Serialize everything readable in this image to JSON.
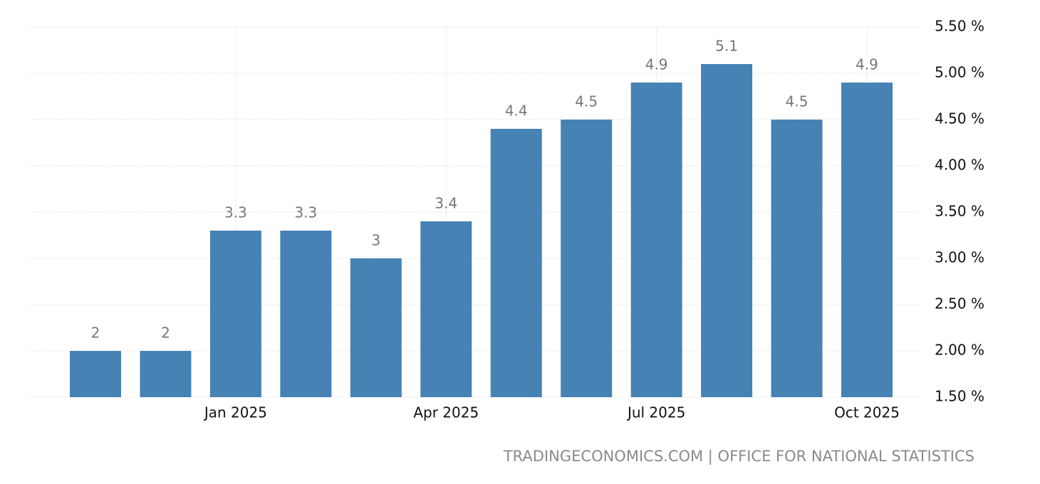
{
  "chart_data": {
    "type": "bar",
    "categories": [
      null,
      null,
      "Jan 2025",
      null,
      null,
      "Apr 2025",
      null,
      null,
      "Jul 2025",
      null,
      null,
      "Oct 2025"
    ],
    "values": [
      2,
      2,
      3.3,
      3.3,
      3,
      3.4,
      4.4,
      4.5,
      4.9,
      5.1,
      4.5,
      4.9
    ],
    "color": "#4682b4",
    "ylim": [
      1.5,
      5.5
    ],
    "yticks": [
      {
        "value": 1.5,
        "label": "1.50 %"
      },
      {
        "value": 2,
        "label": "2.00 %"
      },
      {
        "value": 2.5,
        "label": "2.50 %"
      },
      {
        "value": 3,
        "label": "3.00 %"
      },
      {
        "value": 3.5,
        "label": "3.50 %"
      },
      {
        "value": 4,
        "label": "4.00 %"
      },
      {
        "value": 4.5,
        "label": "4.50 %"
      },
      {
        "value": 5,
        "label": "5.00 %"
      },
      {
        "value": 5.5,
        "label": "5.50 %"
      }
    ],
    "grid": true,
    "source": "TRADINGECONOMICS.COM | OFFICE FOR NATIONAL STATISTICS"
  }
}
